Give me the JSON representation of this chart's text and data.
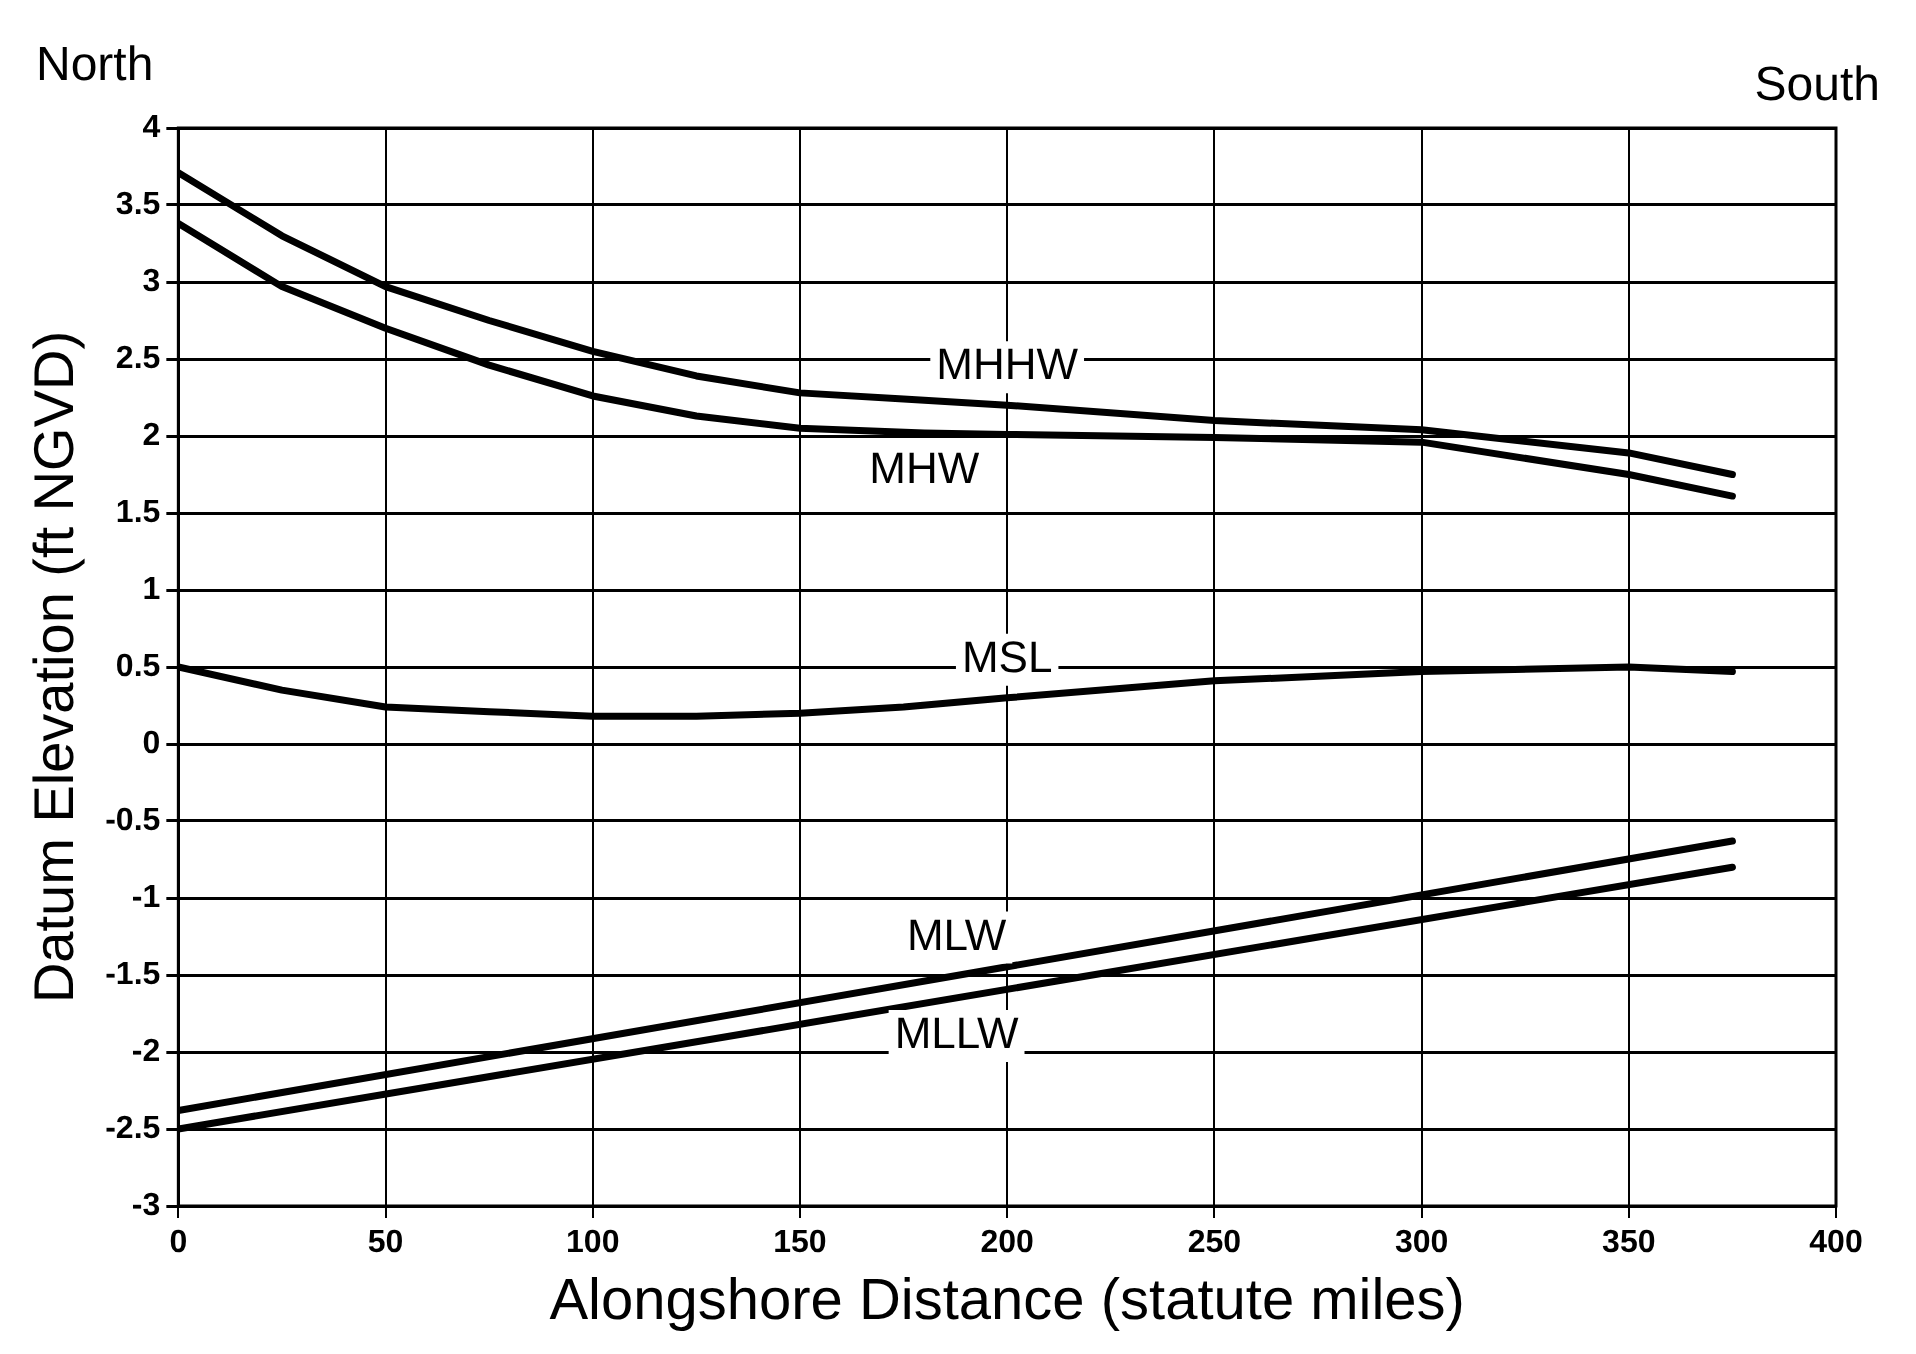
{
  "chart_data": {
    "type": "line",
    "xlabel": "Alongshore Distance (statute miles)",
    "ylabel": "Datum Elevation (ft NGVD)",
    "annotations": [
      "North",
      "South"
    ],
    "series": [
      {
        "name": "MHHW",
        "color": "#000000",
        "x": [
          0,
          25,
          50,
          75,
          100,
          125,
          150,
          175,
          200,
          250,
          300,
          350,
          375
        ],
        "values": [
          3.71,
          3.3,
          2.97,
          2.75,
          2.55,
          2.39,
          2.28,
          2.24,
          2.2,
          2.1,
          2.04,
          1.89,
          1.75
        ]
      },
      {
        "name": "MHW",
        "color": "#000000",
        "x": [
          0,
          25,
          50,
          75,
          100,
          125,
          150,
          180,
          200,
          250,
          300,
          350,
          375
        ],
        "values": [
          3.38,
          2.97,
          2.7,
          2.46,
          2.26,
          2.13,
          2.05,
          2.02,
          2.01,
          1.99,
          1.96,
          1.75,
          1.61
        ]
      },
      {
        "name": "MSL",
        "color": "#000000",
        "x": [
          0,
          25,
          50,
          75,
          100,
          125,
          150,
          175,
          200,
          250,
          300,
          350,
          375
        ],
        "values": [
          0.5,
          0.35,
          0.24,
          0.21,
          0.18,
          0.18,
          0.2,
          0.24,
          0.3,
          0.41,
          0.47,
          0.5,
          0.47
        ]
      },
      {
        "name": "MLW",
        "color": "#000000",
        "x": [
          0,
          375
        ],
        "values": [
          -2.38,
          -0.63
        ]
      },
      {
        "name": "MLLW",
        "color": "#000000",
        "x": [
          0,
          375
        ],
        "values": [
          -2.5,
          -0.8
        ]
      }
    ],
    "xlim": [
      0,
      400
    ],
    "xticks": [
      0,
      50,
      100,
      150,
      200,
      250,
      300,
      350,
      400
    ],
    "ylim": [
      -3,
      4
    ],
    "yticks": [
      -3,
      -2.5,
      -2,
      -1.5,
      -1,
      -0.5,
      0,
      0.5,
      1,
      1.5,
      2,
      2.5,
      3,
      3.5,
      4
    ],
    "grid": true,
    "legend": false,
    "marker": "none",
    "line_style": "solid"
  }
}
